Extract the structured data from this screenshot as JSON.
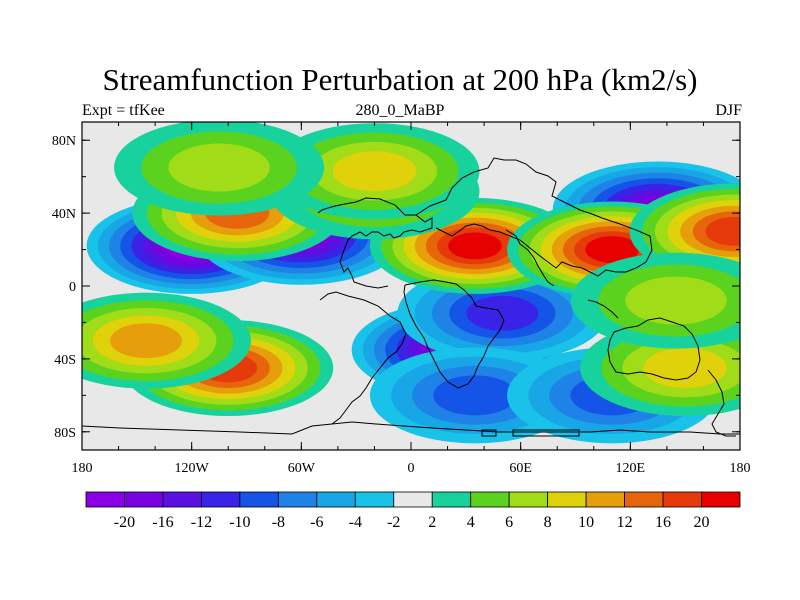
{
  "title": "Streamfunction Perturbation at 200 hPa (km2/s)",
  "left_string": "Expt = tfKee",
  "center_string": "280_0_MaBP",
  "right_string": "DJF",
  "map": {
    "projection": "cylindrical-equidistant",
    "lon_range": [
      -180,
      180
    ],
    "lat_range": [
      -90,
      90
    ],
    "lat_ticks": [
      {
        "value": 80,
        "label": "80N"
      },
      {
        "value": 40,
        "label": "40N"
      },
      {
        "value": 0,
        "label": "0"
      },
      {
        "value": -40,
        "label": "40S"
      },
      {
        "value": -80,
        "label": "80S"
      }
    ],
    "lon_ticks": [
      {
        "value": -180,
        "label": "180"
      },
      {
        "value": -120,
        "label": "120W"
      },
      {
        "value": -60,
        "label": "60W"
      },
      {
        "value": 0,
        "label": "0"
      },
      {
        "value": 60,
        "label": "60E"
      },
      {
        "value": 120,
        "label": "120E"
      },
      {
        "value": 180,
        "label": "180"
      }
    ],
    "background_color": "#e8e8e8",
    "field_centers": [
      {
        "lon": -120,
        "lat": 22,
        "value": -20
      },
      {
        "lon": -60,
        "lat": 27,
        "value": -16
      },
      {
        "lon": 25,
        "lat": -35,
        "value": -20
      },
      {
        "lon": 50,
        "lat": -15,
        "value": -10
      },
      {
        "lon": 35,
        "lat": -60,
        "value": -8
      },
      {
        "lon": 110,
        "lat": -60,
        "value": -8
      },
      {
        "lon": 135,
        "lat": 42,
        "value": -16
      },
      {
        "lon": -100,
        "lat": -45,
        "value": 16
      },
      {
        "lon": -145,
        "lat": -30,
        "value": 10
      },
      {
        "lon": -95,
        "lat": 40,
        "value": 12
      },
      {
        "lon": 35,
        "lat": 22,
        "value": 20
      },
      {
        "lon": 110,
        "lat": 20,
        "value": 20
      },
      {
        "lon": 177,
        "lat": 30,
        "value": 16
      },
      {
        "lon": -20,
        "lat": 52,
        "value": 6
      },
      {
        "lon": -20,
        "lat": 63,
        "value": 8
      },
      {
        "lon": -105,
        "lat": 65,
        "value": 6
      },
      {
        "lon": 150,
        "lat": -45,
        "value": 8
      },
      {
        "lon": 145,
        "lat": -8,
        "value": 6
      }
    ],
    "land_outlines": [
      "north-america",
      "south-america",
      "europe",
      "africa",
      "asia",
      "australia",
      "antarctica"
    ]
  },
  "colorbar": {
    "colors": [
      "#8b00e6",
      "#7a00e2",
      "#5a10e0",
      "#3a22e6",
      "#1454e6",
      "#1e82e6",
      "#18a6e6",
      "#18c2e8",
      "#e8e8e8",
      "#18d29e",
      "#5ad21e",
      "#a0dc18",
      "#e0d20a",
      "#e69e0a",
      "#e6640a",
      "#e63a0a",
      "#e60000"
    ],
    "labels": [
      "-20",
      "-16",
      "-12",
      "-10",
      "-8",
      "-6",
      "-4",
      "-2",
      "2",
      "4",
      "6",
      "8",
      "10",
      "12",
      "16",
      "20"
    ]
  }
}
